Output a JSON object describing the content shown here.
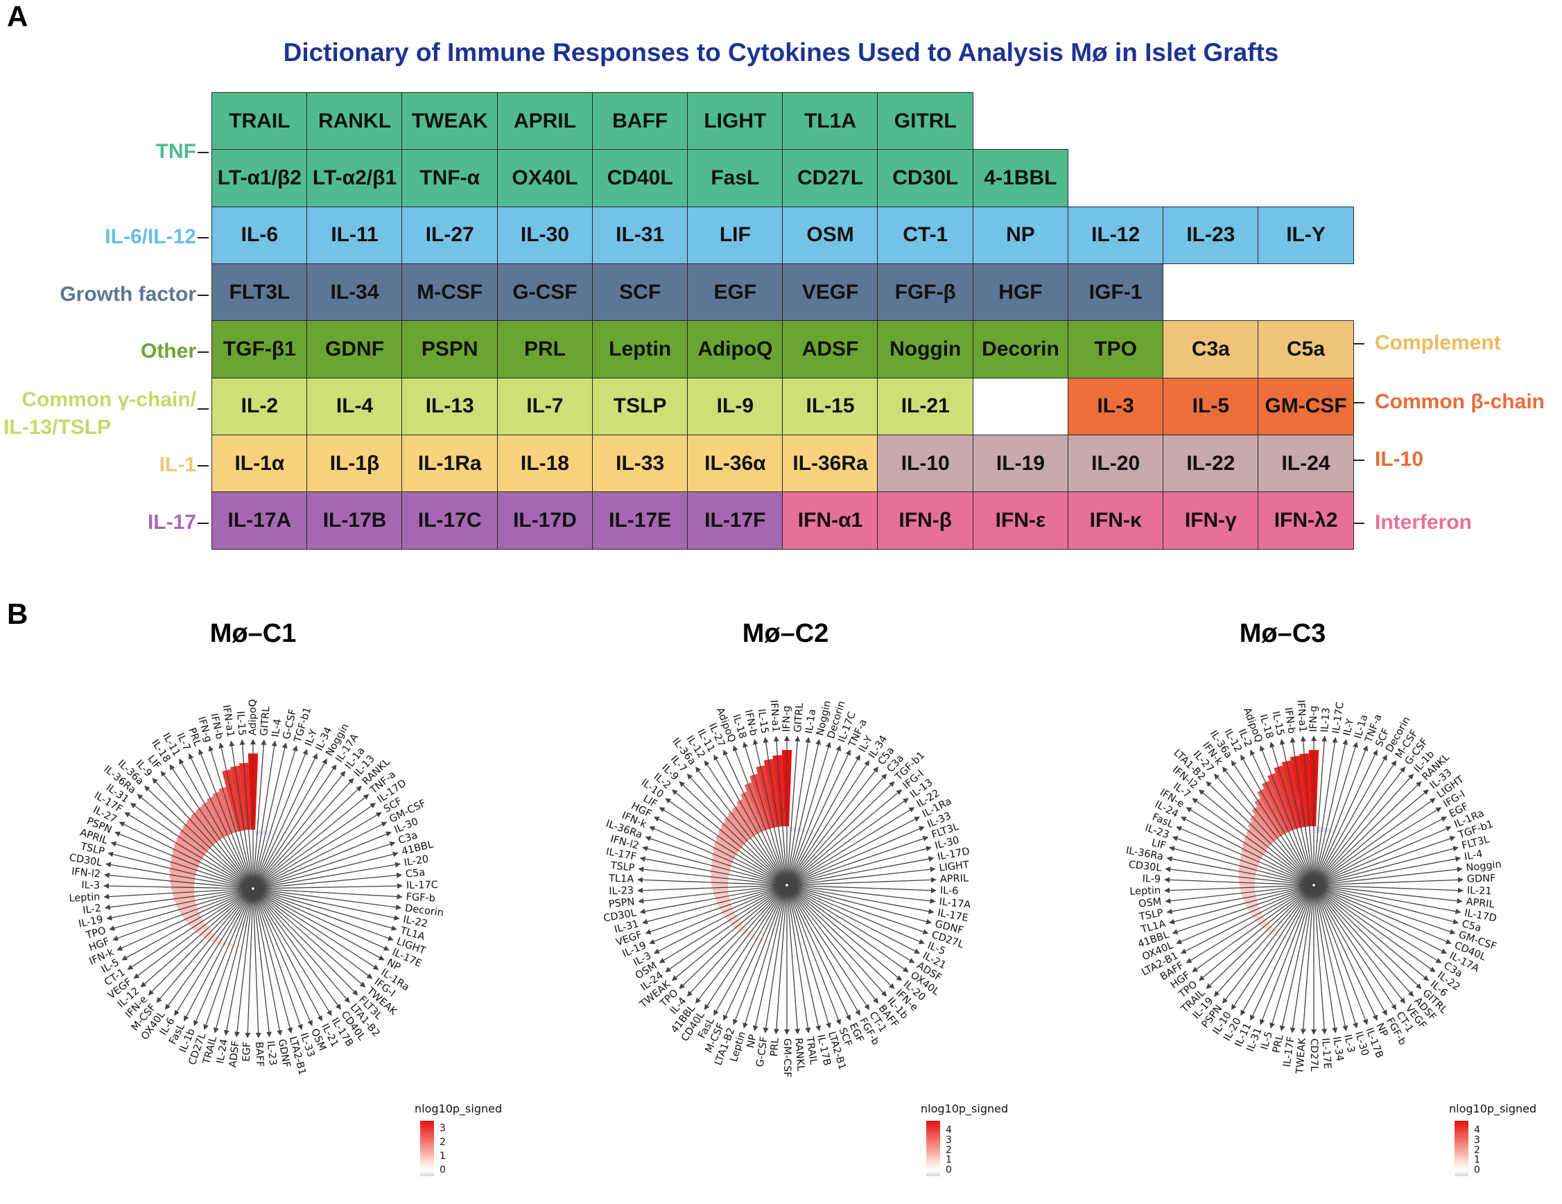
{
  "panel_a": {
    "letter": "A",
    "title": "Dictionary of Immune Responses to Cytokines Used to Analysis Mø in Islet Grafts",
    "row_labels": [
      "TNF",
      "IL-6/IL-12",
      "Growth factor",
      "Other",
      "Common γ-chain/",
      "IL-13/TSLP",
      "IL-1",
      "IL-17"
    ],
    "right_labels": [
      "Complement",
      "Common β-chain",
      "IL-10",
      "Interferon"
    ],
    "colors": {
      "tnf": "#4fbb8f",
      "il6": "#74c2e6",
      "growth": "#5e7695",
      "other": "#6aa431",
      "gamma": "#cddf77",
      "il1": "#f6d27d",
      "il17": "#a667b1",
      "interferon": "#e87097",
      "complement": "#efc57c",
      "beta": "#ec6f3a",
      "il10": "#c7a9ab",
      "lab_tnf": "#4fbb8f",
      "lab_il6": "#6cbde6",
      "lab_growth": "#5e7695",
      "lab_other": "#6aa431",
      "lab_gamma": "#c5d86a",
      "lab_il1": "#f0c873",
      "lab_il17": "#a667b1",
      "lab_complement": "#efba5c",
      "lab_beta": "#ea6b36",
      "lab_il10": "#ea6b36",
      "lab_interferon": "#e87097"
    },
    "rows": [
      [
        [
          "TRAIL",
          "tnf"
        ],
        [
          "RANKL",
          "tnf"
        ],
        [
          "TWEAK",
          "tnf"
        ],
        [
          "APRIL",
          "tnf"
        ],
        [
          "BAFF",
          "tnf"
        ],
        [
          "LIGHT",
          "tnf"
        ],
        [
          "TL1A",
          "tnf"
        ],
        [
          "GITRL",
          "tnf"
        ]
      ],
      [
        [
          "LT-α1/β2",
          "tnf"
        ],
        [
          "LT-α2/β1",
          "tnf"
        ],
        [
          "TNF-α",
          "tnf"
        ],
        [
          "OX40L",
          "tnf"
        ],
        [
          "CD40L",
          "tnf"
        ],
        [
          "FasL",
          "tnf"
        ],
        [
          "CD27L",
          "tnf"
        ],
        [
          "CD30L",
          "tnf"
        ],
        [
          "4-1BBL",
          "tnf"
        ]
      ],
      [
        [
          "IL-6",
          "il6"
        ],
        [
          "IL-11",
          "il6"
        ],
        [
          "IL-27",
          "il6"
        ],
        [
          "IL-30",
          "il6"
        ],
        [
          "IL-31",
          "il6"
        ],
        [
          "LIF",
          "il6"
        ],
        [
          "OSM",
          "il6"
        ],
        [
          "CT-1",
          "il6"
        ],
        [
          "NP",
          "il6"
        ],
        [
          "IL-12",
          "il6"
        ],
        [
          "IL-23",
          "il6"
        ],
        [
          "IL-Y",
          "il6"
        ]
      ],
      [
        [
          "FLT3L",
          "growth"
        ],
        [
          "IL-34",
          "growth"
        ],
        [
          "M-CSF",
          "growth"
        ],
        [
          "G-CSF",
          "growth"
        ],
        [
          "SCF",
          "growth"
        ],
        [
          "EGF",
          "growth"
        ],
        [
          "VEGF",
          "growth"
        ],
        [
          "FGF-β",
          "growth"
        ],
        [
          "HGF",
          "growth"
        ],
        [
          "IGF-1",
          "growth"
        ]
      ],
      [
        [
          "TGF-β1",
          "other"
        ],
        [
          "GDNF",
          "other"
        ],
        [
          "PSPN",
          "other"
        ],
        [
          "PRL",
          "other"
        ],
        [
          "Leptin",
          "other"
        ],
        [
          "AdipoQ",
          "other"
        ],
        [
          "ADSF",
          "other"
        ],
        [
          "Noggin",
          "other"
        ],
        [
          "Decorin",
          "other"
        ],
        [
          "TPO",
          "other"
        ],
        [
          "C3a",
          "complement"
        ],
        [
          "C5a",
          "complement"
        ]
      ],
      [
        [
          "IL-2",
          "gamma"
        ],
        [
          "IL-4",
          "gamma"
        ],
        [
          "IL-13",
          "gamma"
        ],
        [
          "IL-7",
          "gamma"
        ],
        [
          "TSLP",
          "gamma"
        ],
        [
          "IL-9",
          "gamma"
        ],
        [
          "IL-15",
          "gamma"
        ],
        [
          "IL-21",
          "gamma"
        ],
        [
          "",
          "white"
        ],
        [
          "IL-3",
          "beta"
        ],
        [
          "IL-5",
          "beta"
        ],
        [
          "GM-CSF",
          "beta"
        ]
      ],
      [
        [
          "IL-1α",
          "il1"
        ],
        [
          "IL-1β",
          "il1"
        ],
        [
          "IL-1Ra",
          "il1"
        ],
        [
          "IL-18",
          "il1"
        ],
        [
          "IL-33",
          "il1"
        ],
        [
          "IL-36α",
          "il1"
        ],
        [
          "IL-36Ra",
          "il1"
        ],
        [
          "IL-10",
          "il10"
        ],
        [
          "IL-19",
          "il10"
        ],
        [
          "IL-20",
          "il10"
        ],
        [
          "IL-22",
          "il10"
        ],
        [
          "IL-24",
          "il10"
        ]
      ],
      [
        [
          "IL-17A",
          "il17"
        ],
        [
          "IL-17B",
          "il17"
        ],
        [
          "IL-17C",
          "il17"
        ],
        [
          "IL-17D",
          "il17"
        ],
        [
          "IL-17E",
          "il17"
        ],
        [
          "IL-17F",
          "il17"
        ],
        [
          "IFN-α1",
          "interferon"
        ],
        [
          "IFN-β",
          "interferon"
        ],
        [
          "IFN-ε",
          "interferon"
        ],
        [
          "IFN-κ",
          "interferon"
        ],
        [
          "IFN-γ",
          "interferon"
        ],
        [
          "IFN-λ2",
          "interferon"
        ]
      ]
    ]
  },
  "panel_b": {
    "letter": "B",
    "charts": [
      {
        "title": "Mø–C1",
        "legend_title": "nlog10p_signed",
        "legend_ticks": [
          "3",
          "2",
          "1",
          "0"
        ],
        "legend_max": 3.3,
        "labels": [
          "AdipoQ",
          "GITRL",
          "IL-4",
          "G-CSF",
          "TGF-b1",
          "IL-Y",
          "IL-34",
          "Noggin",
          "IL-17A",
          "IL-1a",
          "IL-13",
          "RANKL",
          "TNF-a",
          "IL-17D",
          "SCF",
          "GM-CSF",
          "IL-30",
          "C3a",
          "41BBL",
          "IL-20",
          "C5a",
          "IL-17C",
          "FGF-b",
          "Decorin",
          "IL-22",
          "TL1A",
          "LIGHT",
          "IL-17E",
          "NP",
          "IL-1Ra",
          "IFG-I",
          "TWEAK",
          "FLT3L",
          "LTA1-B2",
          "CD40L",
          "IL-17B",
          "IL-21",
          "OSM",
          "IL-33",
          "LTA2-B1",
          "GDNF",
          "IL-23",
          "BAFF",
          "EGF",
          "ADSF",
          "IL-24",
          "TRAIL",
          "CD27L",
          "IL-1b",
          "FasL",
          "IL-6",
          "OX40L",
          "M-CSF",
          "IFN-e",
          "IL-12",
          "VEGF",
          "CT-1",
          "IL-5",
          "IFN-k",
          "HGF",
          "TPO",
          "IL-19",
          "IL-2",
          "Leptin",
          "IL-3",
          "IFN-l2",
          "CD30L",
          "TSLP",
          "APRIL",
          "PSPN",
          "IL-27",
          "IL-17F",
          "IL-31",
          "IL-36Ra",
          "IL-36a",
          "IL-9",
          "LIF",
          "IL-18",
          "IL-11",
          "IL-7",
          "PRL",
          "IFN-g",
          "IFN-b",
          "IFN-a1",
          "IL-15"
        ],
        "values": [
          3.3,
          -0.2,
          -0.15,
          -0.15,
          -0.12,
          -0.1,
          -0.1,
          -0.08,
          -0.08,
          -0.06,
          -0.05,
          -0.05,
          -0.04,
          -0.03,
          -0.02,
          -0.02,
          -0.01,
          0,
          0,
          0,
          0,
          0,
          0,
          0,
          0,
          0,
          0,
          0,
          0,
          0,
          0,
          0,
          0,
          0,
          0,
          0,
          0,
          0,
          0,
          0,
          0,
          0,
          0,
          0,
          0.05,
          0.08,
          0.1,
          0.15,
          0.2,
          0.25,
          0.3,
          0.35,
          0.4,
          0.45,
          0.5,
          0.55,
          0.6,
          0.65,
          0.7,
          0.75,
          0.8,
          0.85,
          0.9,
          0.95,
          1.0,
          1.05,
          1.1,
          1.15,
          1.2,
          1.25,
          1.3,
          1.35,
          1.4,
          1.45,
          1.5,
          1.55,
          1.6,
          1.65,
          1.7,
          1.8,
          1.9,
          2.0,
          2.7,
          2.8,
          2.9
        ]
      },
      {
        "title": "Mø–C2",
        "legend_title": "nlog10p_signed",
        "legend_ticks": [
          "4",
          "3",
          "2",
          "1",
          "0"
        ],
        "legend_max": 4.6,
        "labels": [
          "IFN-g",
          "GITRL",
          "IL-1a",
          "Noggin",
          "Decorin",
          "IL-17C",
          "TNF-a",
          "IL-Y",
          "IL-34",
          "C5a",
          "C3a",
          "TGF-b1",
          "IFG-I",
          "IL-13",
          "IL-22",
          "IL-1Ra",
          "IL-33",
          "FLT3L",
          "IL-30",
          "IL-17D",
          "LIGHT",
          "APRIL",
          "IL-6",
          "IL-17A",
          "IL-17E",
          "GDNF",
          "CD27L",
          "IL-5",
          "IL-21",
          "ADSF",
          "OX40L",
          "IL-20",
          "IFN-e",
          "IL-1b",
          "BAFF",
          "CT-1",
          "FGF-b",
          "EGF",
          "SCF",
          "LTA2-B1",
          "IL-17B",
          "TRAIL",
          "RANKL",
          "GM-CSF",
          "PRL",
          "G-CSF",
          "NP",
          "Leptin",
          "LTA1-B2",
          "M-CSF",
          "FasL",
          "CD40L",
          "41BBL",
          "IL-4",
          "TPO",
          "TWEAK",
          "IL-24",
          "OSM",
          "IL-3",
          "IL-19",
          "VEGF",
          "IL-31",
          "CD30L",
          "PSPN",
          "IL-23",
          "TL1A",
          "TSLP",
          "IL-17F",
          "IFN-l2",
          "IL-36Ra",
          "IFN-k",
          "HGF",
          "LIF",
          "IL-10",
          "IL-2",
          "IL-9",
          "IL-7",
          "IL-36a",
          "IL-12",
          "IL-11",
          "IL-27",
          "AdipoQ",
          "IL-18",
          "IFN-b",
          "IL-15",
          "IFN-a1"
        ],
        "values": [
          4.6,
          -0.2,
          -0.15,
          -0.15,
          -0.12,
          -0.1,
          -0.1,
          -0.08,
          -0.06,
          -0.05,
          -0.04,
          -0.03,
          -0.02,
          -0.01,
          0,
          0,
          0,
          0,
          0,
          0,
          0,
          0,
          0,
          0,
          0,
          0,
          0,
          0,
          0,
          0,
          0,
          0,
          0,
          0,
          0,
          0,
          0,
          0,
          0,
          0,
          0,
          0,
          0,
          0,
          0,
          0.05,
          0.08,
          0.1,
          0.15,
          0.2,
          0.25,
          0.3,
          0.35,
          0.4,
          0.45,
          0.5,
          0.55,
          0.6,
          0.65,
          0.7,
          0.75,
          0.8,
          0.85,
          0.9,
          0.95,
          1.0,
          1.05,
          1.1,
          1.15,
          1.2,
          1.3,
          1.4,
          1.5,
          1.6,
          1.7,
          1.8,
          1.9,
          2.0,
          2.1,
          2.3,
          2.6,
          3.0,
          3.4,
          3.8,
          4.1,
          4.3
        ]
      },
      {
        "title": "Mø–C3",
        "legend_title": "nlog10p_signed",
        "legend_ticks": [
          "4",
          "3",
          "2",
          "1",
          "0"
        ],
        "legend_max": 4.6,
        "labels": [
          "IFN-g",
          "IL-13",
          "IL-17C",
          "IL-Y",
          "IL-1a",
          "TNF-a",
          "SCF",
          "Decorin",
          "M-CSF",
          "G-CSF",
          "IL-1b",
          "RANKL",
          "IL-33",
          "LIGHT",
          "IFG-I",
          "EGF",
          "IL-1Ra",
          "TGF-b1",
          "FLT3L",
          "IL-4",
          "Noggin",
          "GDNF",
          "IL-21",
          "APRIL",
          "IL-17D",
          "C5a",
          "GM-CSF",
          "CD40L",
          "IL-17A",
          "C3a",
          "IL-22",
          "IL-6",
          "GITRL",
          "ADSF",
          "VEGF",
          "CT-1",
          "FGF-b",
          "NP",
          "IL-17B",
          "IL-30",
          "IL-3",
          "IL-34",
          "IL-17E",
          "CD27L",
          "TWEAK",
          "IL-17F",
          "PRL",
          "IL-5",
          "IL-31",
          "IL-11",
          "IL-20",
          "IL-10",
          "PSPN",
          "IL-19",
          "TRAIL",
          "TPO",
          "HGF",
          "BAFF",
          "LTA2-B1",
          "OX40L",
          "41BBL",
          "TL1A",
          "TSLP",
          "OSM",
          "Leptin",
          "IL-9",
          "CD30L",
          "IL-36Ra",
          "LIF",
          "IL-23",
          "FasL",
          "IL-24",
          "IFN-e",
          "IL-7",
          "IFN-l2",
          "LTA1-B2",
          "IL-27",
          "IFN-k",
          "IL-36a",
          "IL-12",
          "IL-2",
          "AdipoQ",
          "IL-18",
          "IL-15",
          "IFN-b",
          "IFN-a1"
        ],
        "values": [
          4.6,
          -0.25,
          -0.2,
          -0.18,
          -0.15,
          -0.12,
          -0.1,
          -0.08,
          -0.06,
          -0.05,
          -0.04,
          -0.03,
          -0.02,
          -0.01,
          0,
          0,
          0,
          0,
          0,
          0,
          0,
          0,
          0,
          0,
          0,
          0,
          0,
          0,
          0,
          0,
          0,
          0,
          0,
          0,
          0,
          0,
          0,
          0,
          0,
          0,
          0,
          0,
          0,
          0,
          0,
          0,
          0.05,
          0.08,
          0.1,
          0.15,
          0.2,
          0.25,
          0.3,
          0.35,
          0.4,
          0.45,
          0.5,
          0.55,
          0.6,
          0.65,
          0.7,
          0.75,
          0.8,
          0.85,
          0.9,
          0.95,
          1.0,
          1.05,
          1.1,
          1.15,
          1.2,
          1.3,
          1.4,
          1.5,
          1.6,
          1.8,
          2.0,
          2.3,
          2.6,
          3.0,
          3.3,
          3.6,
          3.9,
          4.1,
          4.3,
          4.4
        ]
      }
    ]
  }
}
